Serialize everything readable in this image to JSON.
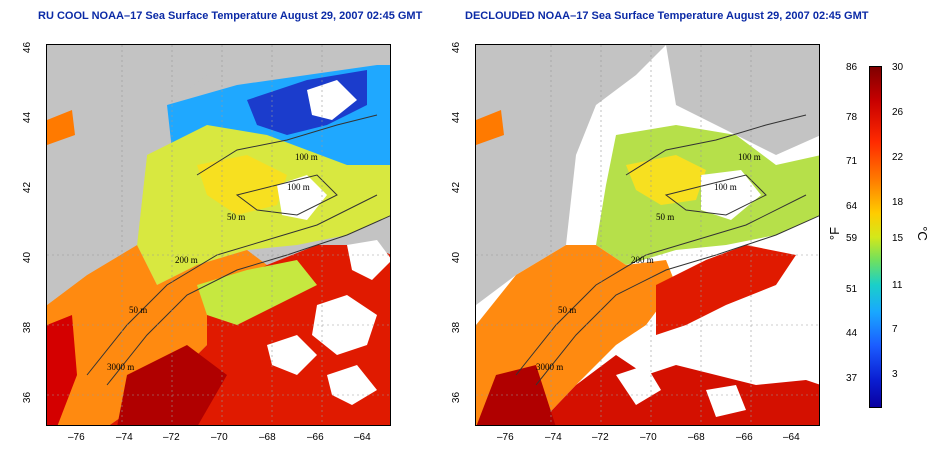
{
  "panels": [
    {
      "title": "RU COOL NOAA–17 Sea Surface Temperature August 29, 2007 02:45 GMT"
    },
    {
      "title": "DECLOUDED NOAA–17 Sea Surface Temperature August 29, 2007 02:45 GMT"
    }
  ],
  "axes": {
    "lon_ticks": [
      "–76",
      "–74",
      "–72",
      "–70",
      "–68",
      "–66",
      "–64"
    ],
    "lat_ticks": [
      "46",
      "44",
      "42",
      "40",
      "38",
      "36"
    ]
  },
  "contours": {
    "labels": [
      "100 m",
      "100 m",
      "50 m",
      "200 m",
      "50 m",
      "3000 m"
    ]
  },
  "colorbar": {
    "fahrenheit_ticks": [
      "86",
      "78",
      "71",
      "64",
      "59",
      "51",
      "44",
      "37"
    ],
    "celsius_ticks": [
      "30",
      "26",
      "22",
      "18",
      "15",
      "11",
      "7",
      "3"
    ],
    "unit_f": "°F",
    "unit_c": "°C",
    "range_celsius": [
      0,
      30
    ]
  },
  "colors": {
    "land": "#c3c3c3",
    "cloud": "#ffffff",
    "title": "#0b2aa6"
  }
}
